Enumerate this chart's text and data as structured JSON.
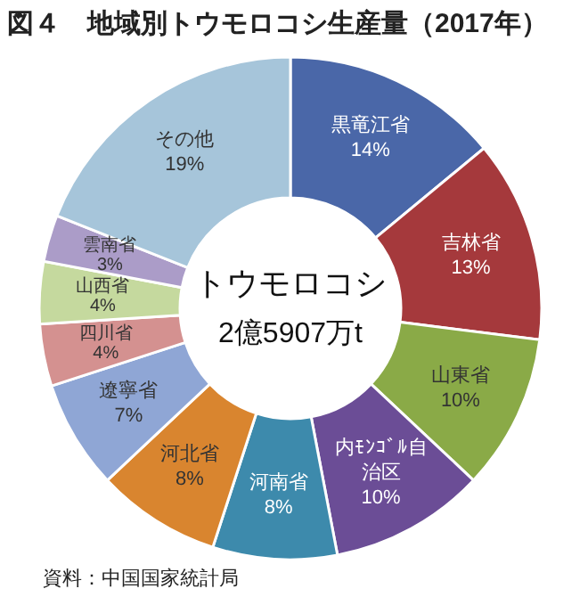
{
  "chart_data": {
    "type": "donut",
    "title": "図４　地域別トウモロコシ生産量（2017年）",
    "categories": [
      "黒竜江省",
      "吉林省",
      "山東省",
      "内ﾓﾝｺﾞﾙ自治区",
      "河南省",
      "河北省",
      "遼寧省",
      "四川省",
      "山西省",
      "雲南省",
      "その他"
    ],
    "values": [
      14,
      13,
      10,
      10,
      8,
      8,
      7,
      4,
      4,
      3,
      19
    ],
    "colors": [
      "#4a67a8",
      "#a5393c",
      "#8aaa47",
      "#6b4d96",
      "#3d8aac",
      "#d9852f",
      "#8fa6d5",
      "#d49190",
      "#c5d99e",
      "#ab9cc8",
      "#a6c5da"
    ],
    "value_labels": [
      "14%",
      "13%",
      "10%",
      "10%",
      "8%",
      "8%",
      "7%",
      "4%",
      "4%",
      "3%",
      "19%"
    ],
    "annotations": [
      "トウモロコシ",
      "2億5907万t",
      "資料：中国国家統計局"
    ]
  }
}
